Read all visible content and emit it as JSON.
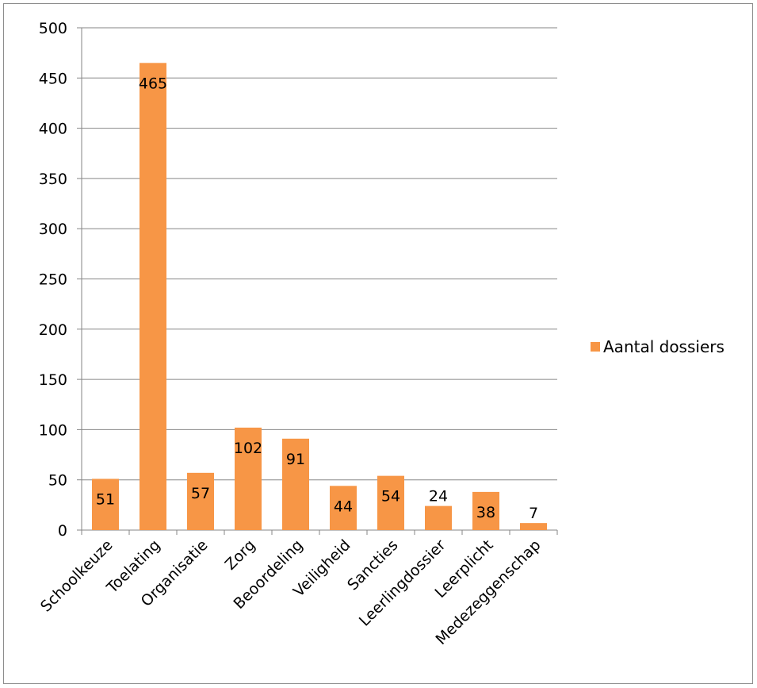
{
  "chart_data": {
    "type": "bar",
    "categories": [
      "Schoolkeuze",
      "Toelating",
      "Organisatie",
      "Zorg",
      "Beoordeling",
      "Veiligheid",
      "Sancties",
      "Leerlingdossier",
      "Leerplicht",
      "Medezeggenschap"
    ],
    "series": [
      {
        "name": "Aantal dossiers",
        "values": [
          51,
          465,
          57,
          102,
          91,
          44,
          54,
          24,
          38,
          7
        ],
        "color": "#f79646"
      }
    ],
    "data_labels": [
      "51",
      "465",
      "57",
      "102",
      "91",
      "44",
      "54",
      "24",
      "38",
      "7"
    ],
    "yticks": [
      "0",
      "50",
      "100",
      "150",
      "200",
      "250",
      "300",
      "350",
      "400",
      "450",
      "500"
    ],
    "ylim": [
      0,
      500
    ],
    "grid": true,
    "legend_position": "right",
    "title": "",
    "xlabel": "",
    "ylabel": ""
  }
}
